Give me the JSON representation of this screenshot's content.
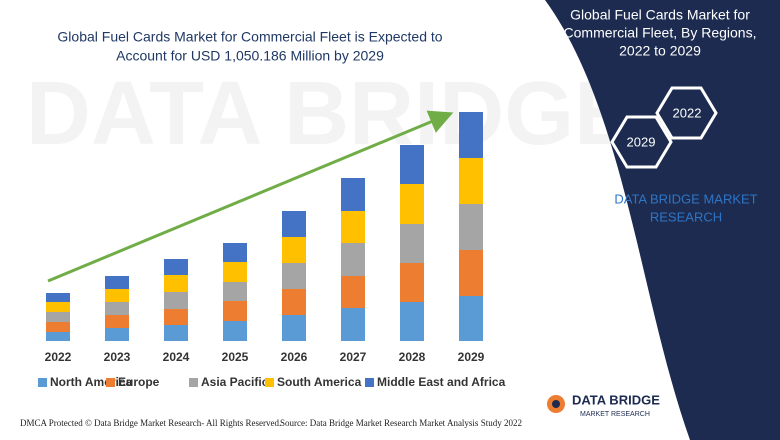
{
  "chart_data": {
    "type": "bar",
    "stacked": true,
    "title": [
      "Global Fuel Cards Market for Commercial Fleet is Expected to",
      "Account for USD 1,050.186 Million by 2029"
    ],
    "categories": [
      "2022",
      "2023",
      "2024",
      "2025",
      "2026",
      "2027",
      "2028",
      "2029"
    ],
    "series": [
      {
        "name": "North America",
        "color": "#5b9bd5",
        "values": [
          9,
          13,
          16,
          20,
          26,
          33,
          39,
          45
        ]
      },
      {
        "name": "Europe",
        "color": "#ed7d31",
        "values": [
          10,
          13,
          16,
          20,
          26,
          32,
          39,
          46
        ]
      },
      {
        "name": "Asia Pacific",
        "color": "#a5a5a5",
        "values": [
          10,
          13,
          17,
          19,
          26,
          33,
          39,
          46
        ]
      },
      {
        "name": "South America",
        "color": "#ffc000",
        "values": [
          10,
          13,
          17,
          20,
          26,
          32,
          40,
          46
        ]
      },
      {
        "name": "Middle East and Africa",
        "color": "#4472c4",
        "values": [
          9,
          13,
          16,
          19,
          26,
          33,
          39,
          46
        ]
      }
    ],
    "ylim": [
      0,
      240
    ],
    "trend_arrow_color": "#70ad47"
  },
  "panel": {
    "title": [
      "Global Fuel Cards Market for",
      "Commercial Fleet, By Regions,",
      "2022 to 2029"
    ],
    "badges": [
      "2022",
      "2029"
    ],
    "brand": [
      "DATA BRIDGE MARKET",
      "RESEARCH"
    ]
  },
  "footer": {
    "left": "DMCA Protected © Data Bridge Market Research- All Rights Reserved.",
    "source": "Source: Data Bridge Market Research Market Analysis Study 2022"
  },
  "logo": {
    "name": "DATA BRIDGE",
    "tagline": "MARKET RESEARCH"
  }
}
